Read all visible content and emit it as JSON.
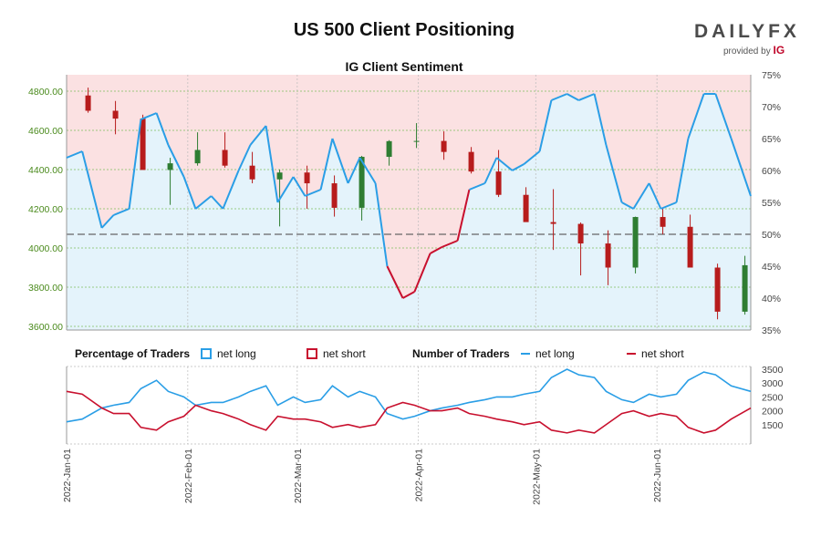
{
  "header": {
    "title": "US 500 Client Positioning",
    "subtitle": "IG Client Sentiment",
    "logo_text": "DAILYFX",
    "logo_sub": "provided by",
    "logo_brand": "IG"
  },
  "legend": {
    "pct_title": "Percentage of Traders",
    "pct_long": "net long",
    "pct_short": "net short",
    "num_title": "Number of Traders",
    "num_long": "net long",
    "num_short": "net short"
  },
  "colors": {
    "long": "#2a9ee6",
    "short": "#c8102e",
    "long_fill": "#e4f3fb",
    "short_fill": "#fbe1e2",
    "up_candle": "#2e7d32",
    "down_candle": "#b71c1c",
    "price_tick": "#4a8a1c"
  },
  "chart_data": [
    {
      "type": "candlestick",
      "title": "IG Client Sentiment",
      "price_axis": {
        "ticks": [
          "3600.00",
          "3800.00",
          "4000.00",
          "4200.00",
          "4400.00",
          "4600.00",
          "4800.00"
        ],
        "ylim": [
          3600,
          4800
        ]
      },
      "pct_axis": {
        "ticks": [
          "35%",
          "40%",
          "45%",
          "50%",
          "55%",
          "60%",
          "65%",
          "70%",
          "75%"
        ],
        "ylim": [
          35,
          75
        ]
      },
      "date_range": [
        "2022-01-01",
        "2022-06-25"
      ],
      "x_ticks": [
        "2022-Jan-01",
        "2022-Feb-01",
        "2022-Mar-01",
        "2022-Apr-01",
        "2022-May-01",
        "2022-Jun-01"
      ],
      "grid": true,
      "reference_line": 50,
      "price_weekly": [
        {
          "date": "2022-01-03",
          "open": 4778,
          "high": 4818,
          "low": 4690,
          "close": 4700
        },
        {
          "date": "2022-01-10",
          "open": 4700,
          "high": 4750,
          "low": 4580,
          "close": 4660
        },
        {
          "date": "2022-01-17",
          "open": 4660,
          "high": 4680,
          "low": 4400,
          "close": 4398
        },
        {
          "date": "2022-01-24",
          "open": 4398,
          "high": 4460,
          "low": 4220,
          "close": 4432
        },
        {
          "date": "2022-01-31",
          "open": 4432,
          "high": 4590,
          "low": 4420,
          "close": 4500
        },
        {
          "date": "2022-02-07",
          "open": 4500,
          "high": 4590,
          "low": 4410,
          "close": 4420
        },
        {
          "date": "2022-02-14",
          "open": 4420,
          "high": 4490,
          "low": 4330,
          "close": 4350
        },
        {
          "date": "2022-02-21",
          "open": 4350,
          "high": 4400,
          "low": 4110,
          "close": 4385
        },
        {
          "date": "2022-02-28",
          "open": 4385,
          "high": 4420,
          "low": 4200,
          "close": 4330
        },
        {
          "date": "2022-03-07",
          "open": 4330,
          "high": 4370,
          "low": 4160,
          "close": 4205
        },
        {
          "date": "2022-03-14",
          "open": 4205,
          "high": 4470,
          "low": 4140,
          "close": 4465
        },
        {
          "date": "2022-03-21",
          "open": 4465,
          "high": 4550,
          "low": 4420,
          "close": 4545
        },
        {
          "date": "2022-03-28",
          "open": 4545,
          "high": 4637,
          "low": 4510,
          "close": 4546
        },
        {
          "date": "2022-04-04",
          "open": 4546,
          "high": 4595,
          "low": 4450,
          "close": 4490
        },
        {
          "date": "2022-04-11",
          "open": 4490,
          "high": 4515,
          "low": 4380,
          "close": 4390
        },
        {
          "date": "2022-04-18",
          "open": 4390,
          "high": 4500,
          "low": 4260,
          "close": 4271
        },
        {
          "date": "2022-04-25",
          "open": 4271,
          "high": 4310,
          "low": 4150,
          "close": 4132
        },
        {
          "date": "2022-05-02",
          "open": 4132,
          "high": 4300,
          "low": 3990,
          "close": 4123
        },
        {
          "date": "2022-05-09",
          "open": 4123,
          "high": 4130,
          "low": 3860,
          "close": 4023
        },
        {
          "date": "2022-05-16",
          "open": 4023,
          "high": 4090,
          "low": 3810,
          "close": 3900
        },
        {
          "date": "2022-05-23",
          "open": 3900,
          "high": 4160,
          "low": 3870,
          "close": 4158
        },
        {
          "date": "2022-05-30",
          "open": 4158,
          "high": 4200,
          "low": 4070,
          "close": 4108
        },
        {
          "date": "2022-06-06",
          "open": 4108,
          "high": 4170,
          "low": 3900,
          "close": 3900
        },
        {
          "date": "2022-06-13",
          "open": 3900,
          "high": 3920,
          "low": 3636,
          "close": 3675
        },
        {
          "date": "2022-06-20",
          "open": 3675,
          "high": 3960,
          "low": 3660,
          "close": 3912
        }
      ],
      "series": [
        {
          "name": "net long",
          "unit": "%",
          "x": [
            "2022-01-01",
            "2022-01-05",
            "2022-01-10",
            "2022-01-13",
            "2022-01-17",
            "2022-01-20",
            "2022-01-24",
            "2022-01-27",
            "2022-01-31",
            "2022-02-03",
            "2022-02-07",
            "2022-02-10",
            "2022-02-14",
            "2022-02-17",
            "2022-02-21",
            "2022-02-24",
            "2022-02-28",
            "2022-03-03",
            "2022-03-07",
            "2022-03-10",
            "2022-03-14",
            "2022-03-17",
            "2022-03-21",
            "2022-03-24",
            "2022-03-28",
            "2022-03-31",
            "2022-04-04",
            "2022-04-07",
            "2022-04-11",
            "2022-04-14",
            "2022-04-18",
            "2022-04-21",
            "2022-04-25",
            "2022-04-28",
            "2022-05-02",
            "2022-05-05",
            "2022-05-09",
            "2022-05-12",
            "2022-05-16",
            "2022-05-19",
            "2022-05-23",
            "2022-05-26",
            "2022-05-30",
            "2022-06-02",
            "2022-06-06",
            "2022-06-09",
            "2022-06-13",
            "2022-06-16",
            "2022-06-20",
            "2022-06-25"
          ],
          "values": [
            62,
            63,
            51,
            53,
            54,
            68,
            69,
            64,
            59,
            54,
            56,
            54,
            60,
            64,
            67,
            55,
            59,
            56,
            57,
            65,
            58,
            62,
            58,
            45,
            40,
            41,
            47,
            48,
            49,
            57,
            58,
            62,
            60,
            61,
            63,
            71,
            72,
            71,
            72,
            64,
            55,
            54,
            58,
            54,
            55,
            65,
            72,
            72,
            65,
            56
          ]
        },
        {
          "name": "net short",
          "unit": "%",
          "x": [
            "2022-01-01",
            "2022-01-05",
            "2022-01-10",
            "2022-01-13",
            "2022-01-17",
            "2022-01-20",
            "2022-01-24",
            "2022-01-27",
            "2022-01-31",
            "2022-02-03",
            "2022-02-07",
            "2022-02-10",
            "2022-02-14",
            "2022-02-17",
            "2022-02-21",
            "2022-02-24",
            "2022-02-28",
            "2022-03-03",
            "2022-03-07",
            "2022-03-10",
            "2022-03-14",
            "2022-03-17",
            "2022-03-21",
            "2022-03-24",
            "2022-03-28",
            "2022-03-31",
            "2022-04-04",
            "2022-04-07",
            "2022-04-11",
            "2022-04-14",
            "2022-04-18",
            "2022-04-21",
            "2022-04-25",
            "2022-04-28",
            "2022-05-02",
            "2022-05-05",
            "2022-05-09",
            "2022-05-12",
            "2022-05-16",
            "2022-05-19",
            "2022-05-23",
            "2022-05-26",
            "2022-05-30",
            "2022-06-02",
            "2022-06-06",
            "2022-06-09",
            "2022-06-13",
            "2022-06-16",
            "2022-06-20",
            "2022-06-25"
          ],
          "values": [
            38,
            37,
            49,
            47,
            46,
            32,
            31,
            36,
            41,
            46,
            44,
            46,
            40,
            36,
            33,
            45,
            41,
            44,
            43,
            35,
            42,
            38,
            42,
            55,
            60,
            59,
            53,
            52,
            51,
            43,
            42,
            38,
            40,
            39,
            37,
            29,
            28,
            29,
            28,
            36,
            45,
            46,
            42,
            46,
            45,
            35,
            28,
            28,
            35,
            44
          ]
        }
      ]
    },
    {
      "type": "line",
      "title": "Number of Traders",
      "yaxis_ticks": [
        "1500",
        "2000",
        "2500",
        "3000",
        "3500"
      ],
      "ylim": [
        800,
        3600
      ],
      "series": [
        {
          "name": "net long",
          "x": [
            "2022-01-01",
            "2022-01-05",
            "2022-01-10",
            "2022-01-13",
            "2022-01-17",
            "2022-01-20",
            "2022-01-24",
            "2022-01-27",
            "2022-01-31",
            "2022-02-03",
            "2022-02-07",
            "2022-02-10",
            "2022-02-14",
            "2022-02-17",
            "2022-02-21",
            "2022-02-24",
            "2022-02-28",
            "2022-03-03",
            "2022-03-07",
            "2022-03-10",
            "2022-03-14",
            "2022-03-17",
            "2022-03-21",
            "2022-03-24",
            "2022-03-28",
            "2022-03-31",
            "2022-04-04",
            "2022-04-07",
            "2022-04-11",
            "2022-04-14",
            "2022-04-18",
            "2022-04-21",
            "2022-04-25",
            "2022-04-28",
            "2022-05-02",
            "2022-05-05",
            "2022-05-09",
            "2022-05-12",
            "2022-05-16",
            "2022-05-19",
            "2022-05-23",
            "2022-05-26",
            "2022-05-30",
            "2022-06-02",
            "2022-06-06",
            "2022-06-09",
            "2022-06-13",
            "2022-06-16",
            "2022-06-20",
            "2022-06-25"
          ],
          "values": [
            1600,
            1700,
            2100,
            2200,
            2300,
            2800,
            3100,
            2700,
            2500,
            2200,
            2300,
            2300,
            2500,
            2700,
            2900,
            2200,
            2500,
            2300,
            2400,
            2900,
            2500,
            2700,
            2500,
            1900,
            1700,
            1800,
            2000,
            2100,
            2200,
            2300,
            2400,
            2500,
            2500,
            2600,
            2700,
            3200,
            3500,
            3300,
            3200,
            2700,
            2400,
            2300,
            2600,
            2500,
            2600,
            3100,
            3400,
            3300,
            2900,
            2700
          ]
        },
        {
          "name": "net short",
          "x": [
            "2022-01-01",
            "2022-01-05",
            "2022-01-10",
            "2022-01-13",
            "2022-01-17",
            "2022-01-20",
            "2022-01-24",
            "2022-01-27",
            "2022-01-31",
            "2022-02-03",
            "2022-02-07",
            "2022-02-10",
            "2022-02-14",
            "2022-02-17",
            "2022-02-21",
            "2022-02-24",
            "2022-02-28",
            "2022-03-03",
            "2022-03-07",
            "2022-03-10",
            "2022-03-14",
            "2022-03-17",
            "2022-03-21",
            "2022-03-24",
            "2022-03-28",
            "2022-03-31",
            "2022-04-04",
            "2022-04-07",
            "2022-04-11",
            "2022-04-14",
            "2022-04-18",
            "2022-04-21",
            "2022-04-25",
            "2022-04-28",
            "2022-05-02",
            "2022-05-05",
            "2022-05-09",
            "2022-05-12",
            "2022-05-16",
            "2022-05-19",
            "2022-05-23",
            "2022-05-26",
            "2022-05-30",
            "2022-06-02",
            "2022-06-06",
            "2022-06-09",
            "2022-06-13",
            "2022-06-16",
            "2022-06-20",
            "2022-06-25"
          ],
          "values": [
            2700,
            2600,
            2100,
            1900,
            1900,
            1400,
            1300,
            1600,
            1800,
            2200,
            2000,
            1900,
            1700,
            1500,
            1300,
            1800,
            1700,
            1700,
            1600,
            1400,
            1500,
            1400,
            1500,
            2100,
            2300,
            2200,
            2000,
            2000,
            2100,
            1900,
            1800,
            1700,
            1600,
            1500,
            1600,
            1300,
            1200,
            1300,
            1200,
            1500,
            1900,
            2000,
            1800,
            1900,
            1800,
            1400,
            1200,
            1300,
            1700,
            2100
          ]
        }
      ]
    }
  ]
}
